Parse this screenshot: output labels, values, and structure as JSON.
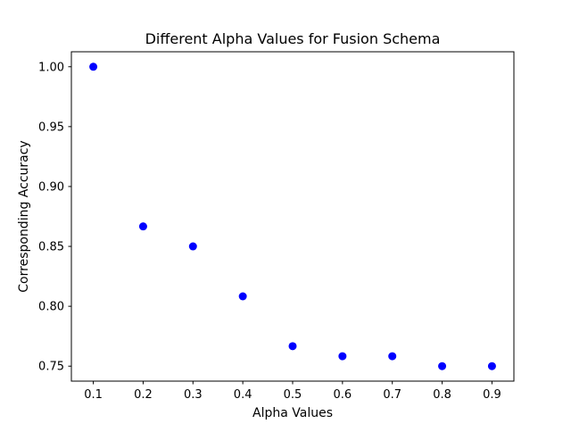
{
  "chart_data": {
    "type": "scatter",
    "title": "Different Alpha Values for Fusion Schema",
    "xlabel": "Alpha Values",
    "ylabel": "Corresponding Accuracy",
    "x": [
      0.1,
      0.2,
      0.3,
      0.4,
      0.5,
      0.6,
      0.7,
      0.8,
      0.9
    ],
    "y": [
      1.0,
      0.8667,
      0.85,
      0.8083,
      0.7667,
      0.7583,
      0.7583,
      0.75,
      0.75
    ],
    "xlim": [
      0.056,
      0.944
    ],
    "ylim": [
      0.7375,
      1.0125
    ],
    "xticks": [
      0.1,
      0.2,
      0.3,
      0.4,
      0.5,
      0.6,
      0.7,
      0.8,
      0.9
    ],
    "xtick_labels": [
      "0.1",
      "0.2",
      "0.3",
      "0.4",
      "0.5",
      "0.6",
      "0.7",
      "0.8",
      "0.9"
    ],
    "yticks": [
      0.75,
      0.8,
      0.85,
      0.9,
      0.95,
      1.0
    ],
    "ytick_labels": [
      "0.75",
      "0.80",
      "0.85",
      "0.90",
      "0.95",
      "1.00"
    ],
    "grid": false,
    "marker_color": "#0000ff"
  }
}
